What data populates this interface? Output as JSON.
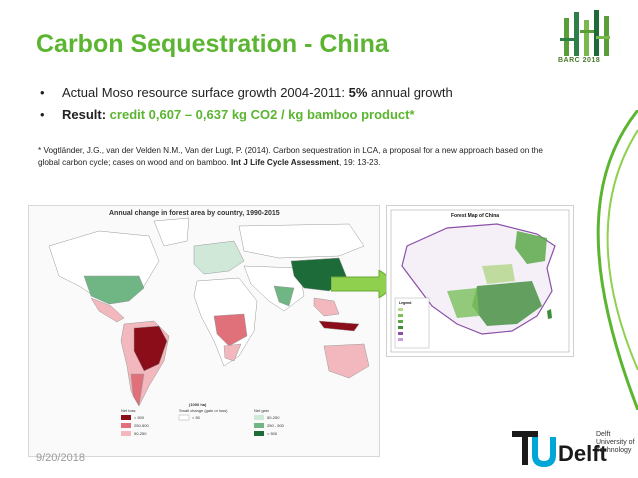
{
  "slide": {
    "title": "Carbon Sequestration - China",
    "logo_text": "BARC 2018",
    "bullets": [
      {
        "marker": "•",
        "prefix": "Actual Moso resource surface growth 2004-2011: ",
        "highlight": "5%",
        "suffix": " annual growth"
      },
      {
        "marker": "•",
        "prefix": "Result: ",
        "highlight": "credit 0,607 – 0,637 kg CO2 / kg bamboo product*"
      }
    ],
    "reference": {
      "text1": "* Vogtländer, J.G., van der Velden N.M., Van der Lugt, P. (2014). Carbon sequestration in LCA, a proposal for a new approach based on the global carbon cycle; cases on wood and on bamboo. ",
      "journal": "Int J Life Cycle Assessment",
      "text2": ", 19: 13-23."
    },
    "world_map": {
      "title": "Annual change in forest area by country, 1990-2015",
      "unit": "(1000 ha)",
      "legend": {
        "net_loss_label": "Net loss",
        "small_change_label": "Small change (gain or loss)",
        "net_gain_label": "Net gain",
        "loss_items": [
          "> 500",
          "250-500",
          "50-250"
        ],
        "small_item": "< 50",
        "gain_items": [
          "50-250",
          "250 - 500",
          "> 500"
        ]
      },
      "colors": {
        "loss_high": "#8b0d1a",
        "loss_mid": "#e0707a",
        "loss_low": "#f3b8bd",
        "small": "#ffffff",
        "gain_low": "#cfe8d7",
        "gain_mid": "#6fb684",
        "gain_high": "#1e6b3a"
      }
    },
    "china_map": {
      "title": "Forest Map of China",
      "legend_title": "Legend"
    },
    "footer": {
      "date": "9/20/2018",
      "brand": "TUDelft",
      "brand_sub": "Delft University of Technology"
    },
    "accent_colors": {
      "green": "#5bb531",
      "arrow": "#8fd14f"
    }
  }
}
